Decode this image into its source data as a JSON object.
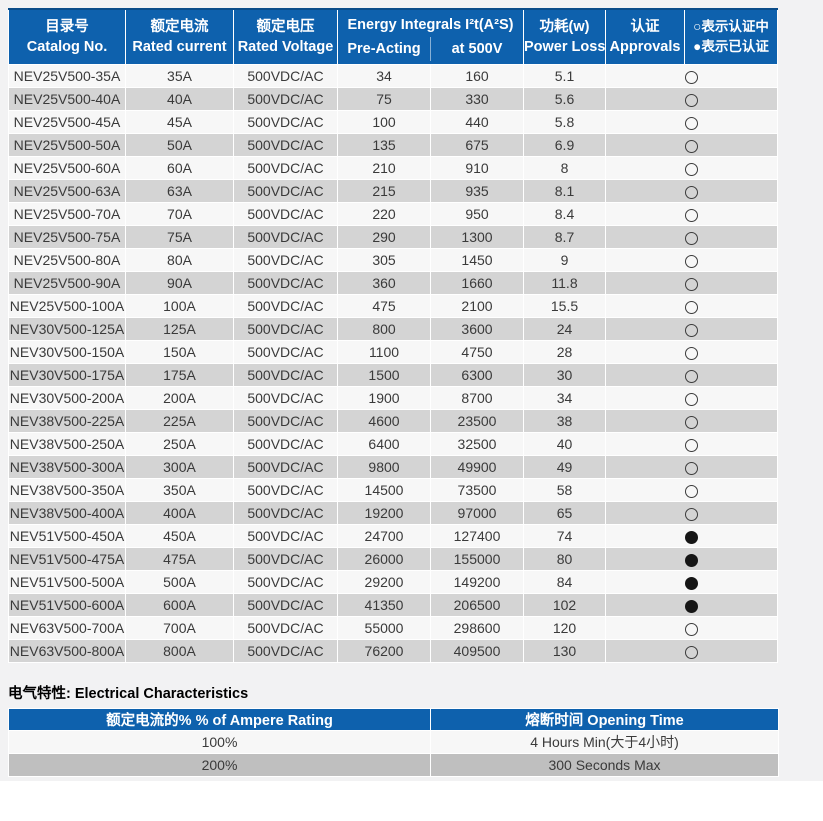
{
  "colors": {
    "header_blue": "#0e61ad",
    "row_light": "#f7f7f7",
    "row_dark": "#d4d4d4",
    "elec_row_dark": "#bfbfbf"
  },
  "main_table": {
    "headers": {
      "catalog_zh": "目录号",
      "catalog_en": "Catalog No.",
      "current_zh": "额定电流",
      "current_en": "Rated current",
      "voltage_zh": "额定电压",
      "voltage_en": "Rated Voltage",
      "energy_title": "Energy Integrals I²t(A²S)",
      "energy_sub1": "Pre-Acting",
      "energy_sub2": "at 500V",
      "power_zh": "功耗(w)",
      "power_en": "Power Loss",
      "approvals_zh": "认证",
      "approvals_en": "Approvals",
      "legend_line1": "○表示认证中",
      "legend_line2": "●表示已认证"
    },
    "rows": [
      {
        "catalog": "NEV25V500-35A",
        "current": "35A",
        "voltage": "500VDC/AC",
        "pre_acting": "34",
        "at_500v": "160",
        "power_loss": "5.1",
        "approval": "pending"
      },
      {
        "catalog": "NEV25V500-40A",
        "current": "40A",
        "voltage": "500VDC/AC",
        "pre_acting": "75",
        "at_500v": "330",
        "power_loss": "5.6",
        "approval": "pending"
      },
      {
        "catalog": "NEV25V500-45A",
        "current": "45A",
        "voltage": "500VDC/AC",
        "pre_acting": "100",
        "at_500v": "440",
        "power_loss": "5.8",
        "approval": "pending"
      },
      {
        "catalog": "NEV25V500-50A",
        "current": "50A",
        "voltage": "500VDC/AC",
        "pre_acting": "135",
        "at_500v": "675",
        "power_loss": "6.9",
        "approval": "pending"
      },
      {
        "catalog": "NEV25V500-60A",
        "current": "60A",
        "voltage": "500VDC/AC",
        "pre_acting": "210",
        "at_500v": "910",
        "power_loss": "8",
        "approval": "pending"
      },
      {
        "catalog": "NEV25V500-63A",
        "current": "63A",
        "voltage": "500VDC/AC",
        "pre_acting": "215",
        "at_500v": "935",
        "power_loss": "8.1",
        "approval": "pending"
      },
      {
        "catalog": "NEV25V500-70A",
        "current": "70A",
        "voltage": "500VDC/AC",
        "pre_acting": "220",
        "at_500v": "950",
        "power_loss": "8.4",
        "approval": "pending"
      },
      {
        "catalog": "NEV25V500-75A",
        "current": "75A",
        "voltage": "500VDC/AC",
        "pre_acting": "290",
        "at_500v": "1300",
        "power_loss": "8.7",
        "approval": "pending"
      },
      {
        "catalog": "NEV25V500-80A",
        "current": "80A",
        "voltage": "500VDC/AC",
        "pre_acting": "305",
        "at_500v": "1450",
        "power_loss": "9",
        "approval": "pending"
      },
      {
        "catalog": "NEV25V500-90A",
        "current": "90A",
        "voltage": "500VDC/AC",
        "pre_acting": "360",
        "at_500v": "1660",
        "power_loss": "11.8",
        "approval": "pending"
      },
      {
        "catalog": "NEV25V500-100A",
        "current": "100A",
        "voltage": "500VDC/AC",
        "pre_acting": "475",
        "at_500v": "2100",
        "power_loss": "15.5",
        "approval": "pending"
      },
      {
        "catalog": "NEV30V500-125A",
        "current": "125A",
        "voltage": "500VDC/AC",
        "pre_acting": "800",
        "at_500v": "3600",
        "power_loss": "24",
        "approval": "pending"
      },
      {
        "catalog": "NEV30V500-150A",
        "current": "150A",
        "voltage": "500VDC/AC",
        "pre_acting": "1100",
        "at_500v": "4750",
        "power_loss": "28",
        "approval": "pending"
      },
      {
        "catalog": "NEV30V500-175A",
        "current": "175A",
        "voltage": "500VDC/AC",
        "pre_acting": "1500",
        "at_500v": "6300",
        "power_loss": "30",
        "approval": "pending"
      },
      {
        "catalog": "NEV30V500-200A",
        "current": "200A",
        "voltage": "500VDC/AC",
        "pre_acting": "1900",
        "at_500v": "8700",
        "power_loss": "34",
        "approval": "pending"
      },
      {
        "catalog": "NEV38V500-225A",
        "current": "225A",
        "voltage": "500VDC/AC",
        "pre_acting": "4600",
        "at_500v": "23500",
        "power_loss": "38",
        "approval": "pending"
      },
      {
        "catalog": "NEV38V500-250A",
        "current": "250A",
        "voltage": "500VDC/AC",
        "pre_acting": "6400",
        "at_500v": "32500",
        "power_loss": "40",
        "approval": "pending"
      },
      {
        "catalog": "NEV38V500-300A",
        "current": "300A",
        "voltage": "500VDC/AC",
        "pre_acting": "9800",
        "at_500v": "49900",
        "power_loss": "49",
        "approval": "pending"
      },
      {
        "catalog": "NEV38V500-350A",
        "current": "350A",
        "voltage": "500VDC/AC",
        "pre_acting": "14500",
        "at_500v": "73500",
        "power_loss": "58",
        "approval": "pending"
      },
      {
        "catalog": "NEV38V500-400A",
        "current": "400A",
        "voltage": "500VDC/AC",
        "pre_acting": "19200",
        "at_500v": "97000",
        "power_loss": "65",
        "approval": "pending"
      },
      {
        "catalog": "NEV51V500-450A",
        "current": "450A",
        "voltage": "500VDC/AC",
        "pre_acting": "24700",
        "at_500v": "127400",
        "power_loss": "74",
        "approval": "certified"
      },
      {
        "catalog": "NEV51V500-475A",
        "current": "475A",
        "voltage": "500VDC/AC",
        "pre_acting": "26000",
        "at_500v": "155000",
        "power_loss": "80",
        "approval": "certified"
      },
      {
        "catalog": "NEV51V500-500A",
        "current": "500A",
        "voltage": "500VDC/AC",
        "pre_acting": "29200",
        "at_500v": "149200",
        "power_loss": "84",
        "approval": "certified"
      },
      {
        "catalog": "NEV51V500-600A",
        "current": "600A",
        "voltage": "500VDC/AC",
        "pre_acting": "41350",
        "at_500v": "206500",
        "power_loss": "102",
        "approval": "certified"
      },
      {
        "catalog": "NEV63V500-700A",
        "current": "700A",
        "voltage": "500VDC/AC",
        "pre_acting": "55000",
        "at_500v": "298600",
        "power_loss": "120",
        "approval": "pending"
      },
      {
        "catalog": "NEV63V500-800A",
        "current": "800A",
        "voltage": "500VDC/AC",
        "pre_acting": "76200",
        "at_500v": "409500",
        "power_loss": "130",
        "approval": "pending"
      }
    ]
  },
  "electrical": {
    "heading": "电气特性:  Electrical Characteristics",
    "headers": {
      "rating": "额定电流的%  % of Ampere Rating",
      "time": "熔断时间  Opening Time"
    },
    "rows": [
      {
        "rating": "100%",
        "time": "4 Hours Min(大于4小时)"
      },
      {
        "rating": "200%",
        "time": "300 Seconds Max"
      }
    ]
  }
}
